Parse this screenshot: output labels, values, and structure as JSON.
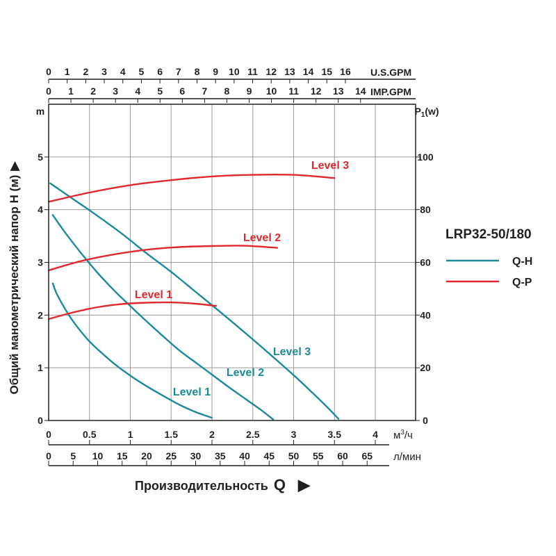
{
  "chart_data": {
    "type": "line",
    "title": "",
    "model": "LRP32-50/180",
    "ylabel": "Общий манометрический напор H (м)",
    "ylabel_arrow": "▶",
    "y_unit": "m",
    "y2_unit_prefix": "P",
    "y2_unit_sub": "1",
    "y2_unit_suffix": "(w)",
    "xlabel": "Производительность",
    "xlabel_symbol": "Q",
    "xlabel_arrow": "▶",
    "x_unit": "м³/ч",
    "x_unit_parts": {
      "base": "м",
      "sup": "3",
      "tail": "/ч"
    },
    "x2_unit": "л/мин",
    "top_axis_1_unit": "U.S.GPM",
    "top_axis_2_unit": "IMP.GPM",
    "xlim": [
      0,
      4.5
    ],
    "ylim": [
      0,
      6
    ],
    "y2lim": [
      0,
      120
    ],
    "grid": true,
    "x_ticks": [
      {
        "v": 0,
        "label": "0"
      },
      {
        "v": 0.5,
        "label": "0.5"
      },
      {
        "v": 1,
        "label": "1"
      },
      {
        "v": 1.5,
        "label": "1.5"
      },
      {
        "v": 2,
        "label": "2"
      },
      {
        "v": 2.5,
        "label": "2.5"
      },
      {
        "v": 3,
        "label": "3"
      },
      {
        "v": 3.5,
        "label": "3.5"
      },
      {
        "v": 4,
        "label": "4"
      }
    ],
    "lmin_ticks": [
      "0",
      "5",
      "10",
      "15",
      "20",
      "25",
      "30",
      "35",
      "40",
      "45",
      "50",
      "55",
      "60",
      "65"
    ],
    "usgpm_ticks": [
      "0",
      "1",
      "2",
      "3",
      "4",
      "5",
      "6",
      "7",
      "8",
      "9",
      "10",
      "11",
      "12",
      "13",
      "14",
      "15",
      "16"
    ],
    "impgpm_ticks": [
      "0",
      "1",
      "2",
      "3",
      "4",
      "5",
      "6",
      "7",
      "8",
      "9",
      "10",
      "11",
      "12",
      "13",
      "14"
    ],
    "y_ticks": [
      "0",
      "1",
      "2",
      "3",
      "4",
      "5"
    ],
    "y2_ticks": [
      "0",
      "20",
      "40",
      "60",
      "80",
      "100"
    ],
    "legend": [
      {
        "name": "Q-H",
        "color": "#1a8a9a"
      },
      {
        "name": "Q-P",
        "color": "#e0282e"
      }
    ],
    "series": [
      {
        "name": "Q-H Level 1",
        "group": "Q-H",
        "label": "Level 1",
        "color": "#1a8a9a",
        "x": [
          0.05,
          0.1,
          0.2,
          0.3,
          0.4,
          0.5,
          0.6,
          0.8,
          1.0,
          1.2,
          1.4,
          1.6,
          1.8,
          2.0
        ],
        "y": [
          2.6,
          2.4,
          2.12,
          1.88,
          1.68,
          1.5,
          1.35,
          1.08,
          0.85,
          0.65,
          0.47,
          0.3,
          0.16,
          0.05
        ]
      },
      {
        "name": "Q-H Level 2",
        "group": "Q-H",
        "label": "Level 2",
        "color": "#1a8a9a",
        "x": [
          0.05,
          0.2,
          0.4,
          0.6,
          0.8,
          1.0,
          1.2,
          1.4,
          1.6,
          1.8,
          2.0,
          2.2,
          2.4,
          2.6,
          2.75
        ],
        "y": [
          3.9,
          3.57,
          3.17,
          2.8,
          2.47,
          2.17,
          1.88,
          1.6,
          1.33,
          1.1,
          0.87,
          0.64,
          0.42,
          0.2,
          0.02
        ]
      },
      {
        "name": "Q-H Level 3",
        "group": "Q-H",
        "label": "Level 3",
        "color": "#1a8a9a",
        "x": [
          0.02,
          0.3,
          0.6,
          0.9,
          1.2,
          1.5,
          1.8,
          2.1,
          2.4,
          2.7,
          3.0,
          3.2,
          3.4,
          3.55
        ],
        "y": [
          4.5,
          4.2,
          3.88,
          3.54,
          3.17,
          2.82,
          2.44,
          2.06,
          1.67,
          1.27,
          0.86,
          0.57,
          0.27,
          0.03
        ]
      },
      {
        "name": "Q-P Level 1",
        "group": "Q-P",
        "label": "Level 1",
        "color": "#e0282e",
        "x": [
          0.0,
          0.3,
          0.6,
          0.9,
          1.2,
          1.5,
          1.8,
          2.05
        ],
        "y2": [
          38.5,
          41.0,
          43.0,
          44.2,
          44.7,
          44.8,
          44.3,
          43.5
        ]
      },
      {
        "name": "Q-P Level 2",
        "group": "Q-P",
        "label": "Level 2",
        "color": "#e0282e",
        "x": [
          0.0,
          0.4,
          0.8,
          1.2,
          1.6,
          2.0,
          2.4,
          2.8
        ],
        "y2": [
          57.0,
          60.5,
          63.0,
          64.8,
          65.8,
          66.2,
          66.3,
          65.5
        ]
      },
      {
        "name": "Q-P Level 3",
        "group": "Q-P",
        "label": "Level 3",
        "color": "#e0282e",
        "x": [
          0.0,
          0.5,
          1.0,
          1.5,
          2.0,
          2.5,
          3.0,
          3.5
        ],
        "y2": [
          83.0,
          86.5,
          89.3,
          91.2,
          92.6,
          93.2,
          93.2,
          92.0
        ]
      }
    ]
  }
}
